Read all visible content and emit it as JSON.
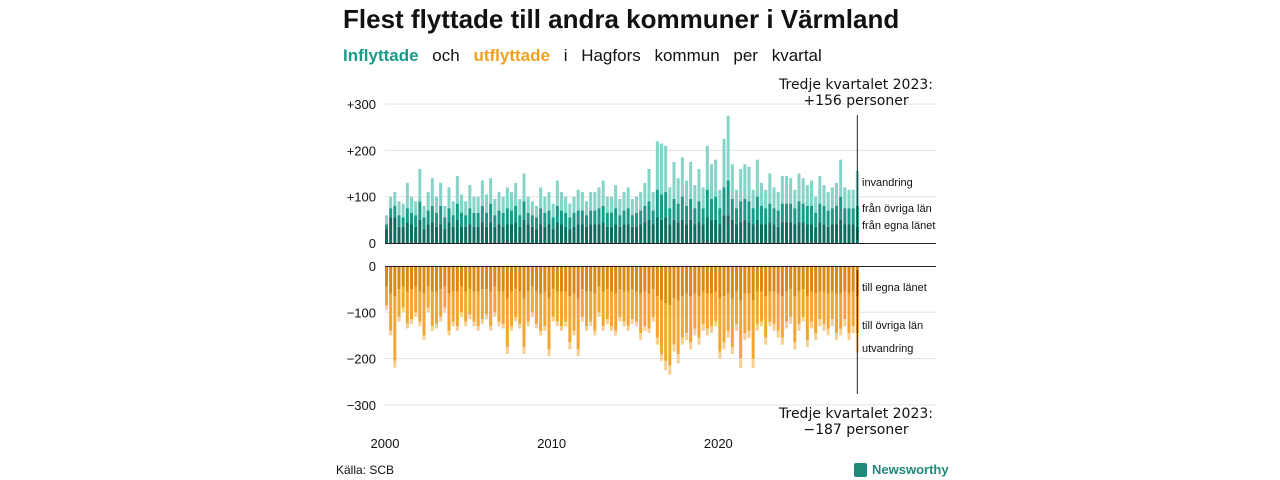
{
  "title": "Flest flyttade till andra kommuner i Värmland",
  "subtitle": {
    "in_label": "Inflyttade",
    "and": "och",
    "out_label": "utflyttade",
    "rest": [
      "i",
      "Hagfors",
      "kommun",
      "per",
      "kvartal"
    ]
  },
  "source": "Källa: SCB",
  "brand": "Newsworthy",
  "colors": {
    "in_lan": "#0d6b60",
    "in_ovr": "#1b9a88",
    "in_inv": "#86d3c8",
    "out_lan": "#db8812",
    "out_ovr": "#f2a631",
    "out_utv": "#f8cf90",
    "grid": "#e3e3e3"
  },
  "chart_data": {
    "type": "bar",
    "stacked": true,
    "x_start": 2000,
    "quarters_per_year": 4,
    "x_ticks": [
      "2000",
      "2010",
      "2020"
    ],
    "y_ticks": [
      "+300",
      "+200",
      "+100",
      "0",
      "0",
      "−100",
      "−200",
      "−300"
    ],
    "ylim_in": [
      0,
      300
    ],
    "ylim_out": [
      -300,
      0
    ],
    "grid": true,
    "annotation_top": {
      "line1": "Tredje kvartalet 2023:",
      "line2": "+156 personer"
    },
    "annotation_bottom": {
      "line1": "Tredje kvartalet 2023:",
      "line2": "−187 personer"
    },
    "series_labels": {
      "in_inv": "invandring",
      "in_ovr": "från övriga län",
      "in_lan": "från egna länet",
      "out_lan": "till egna länet",
      "out_ovr": "till övriga län",
      "out_utv": "utvandring"
    },
    "inflyttade_total": [
      60,
      100,
      110,
      90,
      85,
      130,
      100,
      90,
      160,
      80,
      110,
      140,
      100,
      130,
      80,
      120,
      90,
      145,
      105,
      90,
      125,
      100,
      100,
      135,
      105,
      140,
      95,
      110,
      100,
      120,
      110,
      130,
      95,
      150,
      100,
      90,
      80,
      120,
      100,
      110,
      85,
      135,
      110,
      100,
      85,
      100,
      115,
      110,
      90,
      110,
      110,
      120,
      135,
      100,
      100,
      125,
      95,
      110,
      120,
      95,
      100,
      110,
      130,
      160,
      110,
      220,
      215,
      210,
      120,
      175,
      140,
      185,
      135,
      175,
      125,
      160,
      120,
      210,
      170,
      180,
      115,
      225,
      275,
      170,
      115,
      160,
      170,
      165,
      115,
      180,
      130,
      115,
      150,
      120,
      110,
      145,
      145,
      140,
      115,
      150,
      140,
      125,
      135,
      100,
      145,
      125,
      110,
      120,
      130,
      180,
      120,
      115,
      115,
      156
    ],
    "ovr_lan": [
      40,
      75,
      80,
      60,
      55,
      75,
      65,
      60,
      90,
      55,
      70,
      80,
      65,
      80,
      55,
      75,
      60,
      85,
      65,
      60,
      75,
      65,
      65,
      80,
      65,
      85,
      60,
      70,
      65,
      75,
      70,
      80,
      60,
      90,
      65,
      60,
      55,
      75,
      65,
      70,
      55,
      80,
      70,
      65,
      55,
      65,
      70,
      70,
      60,
      70,
      70,
      75,
      80,
      65,
      65,
      75,
      60,
      70,
      75,
      60,
      65,
      70,
      80,
      90,
      70,
      115,
      105,
      110,
      75,
      95,
      85,
      100,
      80,
      95,
      75,
      90,
      75,
      115,
      95,
      100,
      75,
      120,
      135,
      95,
      75,
      90,
      95,
      90,
      75,
      100,
      80,
      75,
      85,
      75,
      70,
      85,
      85,
      85,
      75,
      90,
      85,
      80,
      80,
      65,
      85,
      80,
      70,
      75,
      80,
      100,
      75,
      75,
      75,
      80
    ],
    "egna_lan": [
      30,
      55,
      55,
      35,
      35,
      45,
      40,
      35,
      50,
      30,
      40,
      45,
      35,
      40,
      30,
      45,
      35,
      50,
      35,
      35,
      40,
      35,
      35,
      45,
      35,
      45,
      35,
      40,
      35,
      40,
      40,
      45,
      35,
      50,
      40,
      35,
      30,
      40,
      35,
      40,
      30,
      45,
      40,
      35,
      30,
      35,
      40,
      40,
      35,
      40,
      40,
      40,
      45,
      35,
      35,
      40,
      35,
      40,
      40,
      35,
      35,
      40,
      45,
      50,
      40,
      55,
      50,
      55,
      40,
      50,
      45,
      50,
      40,
      50,
      40,
      45,
      40,
      55,
      50,
      50,
      40,
      60,
      60,
      50,
      40,
      45,
      50,
      45,
      40,
      50,
      40,
      40,
      45,
      40,
      35,
      45,
      45,
      45,
      40,
      45,
      45,
      40,
      40,
      35,
      45,
      40,
      35,
      40,
      40,
      50,
      40,
      40,
      40,
      35
    ],
    "utflyttade_total": [
      -95,
      -150,
      -220,
      -120,
      -100,
      -135,
      -125,
      -110,
      -130,
      -160,
      -100,
      -140,
      -135,
      -120,
      -100,
      -150,
      -130,
      -140,
      -110,
      -130,
      -115,
      -130,
      -140,
      -125,
      -115,
      -140,
      -110,
      -130,
      -135,
      -190,
      -140,
      -120,
      -135,
      -190,
      -130,
      -110,
      -135,
      -150,
      -140,
      -195,
      -120,
      -130,
      -140,
      -130,
      -180,
      -150,
      -195,
      -120,
      -140,
      -130,
      -150,
      -110,
      -140,
      -125,
      -140,
      -150,
      -120,
      -130,
      -140,
      -125,
      -130,
      -160,
      -140,
      -145,
      -120,
      -170,
      -205,
      -225,
      -235,
      -185,
      -210,
      -170,
      -160,
      -180,
      -150,
      -170,
      -140,
      -150,
      -145,
      -130,
      -200,
      -180,
      -155,
      -190,
      -140,
      -220,
      -160,
      -155,
      -220,
      -140,
      -130,
      -170,
      -130,
      -140,
      -155,
      -170,
      -135,
      -125,
      -180,
      -140,
      -120,
      -175,
      -135,
      -160,
      -130,
      -140,
      -150,
      -130,
      -160,
      -150,
      -130,
      -160,
      -145,
      -187
    ],
    "ut_egna_lan": [
      -45,
      -60,
      -65,
      -50,
      -45,
      -55,
      -50,
      -45,
      -55,
      -60,
      -45,
      -55,
      -55,
      -50,
      -45,
      -60,
      -55,
      -55,
      -45,
      -55,
      -50,
      -55,
      -55,
      -50,
      -50,
      -55,
      -45,
      -55,
      -55,
      -70,
      -55,
      -50,
      -55,
      -70,
      -55,
      -45,
      -55,
      -60,
      -55,
      -70,
      -50,
      -55,
      -55,
      -55,
      -65,
      -60,
      -70,
      -50,
      -55,
      -55,
      -60,
      -45,
      -55,
      -50,
      -55,
      -60,
      -50,
      -55,
      -55,
      -50,
      -55,
      -60,
      -55,
      -60,
      -50,
      -65,
      -75,
      -80,
      -85,
      -70,
      -75,
      -65,
      -60,
      -65,
      -60,
      -65,
      -55,
      -60,
      -60,
      -55,
      -70,
      -65,
      -60,
      -70,
      -55,
      -75,
      -60,
      -60,
      -75,
      -55,
      -55,
      -65,
      -55,
      -55,
      -60,
      -65,
      -55,
      -50,
      -65,
      -55,
      -50,
      -65,
      -55,
      -60,
      -55,
      -55,
      -60,
      -55,
      -60,
      -60,
      -55,
      -60,
      -55,
      -65
    ],
    "ut_ovr_lan": [
      -40,
      -80,
      -140,
      -60,
      -45,
      -70,
      -65,
      -55,
      -65,
      -90,
      -45,
      -75,
      -70,
      -60,
      -45,
      -80,
      -65,
      -75,
      -55,
      -65,
      -55,
      -65,
      -75,
      -65,
      -55,
      -75,
      -55,
      -65,
      -70,
      -105,
      -75,
      -60,
      -70,
      -105,
      -65,
      -55,
      -70,
      -80,
      -75,
      -110,
      -60,
      -65,
      -75,
      -65,
      -100,
      -80,
      -110,
      -60,
      -75,
      -65,
      -80,
      -55,
      -75,
      -65,
      -75,
      -80,
      -60,
      -65,
      -75,
      -65,
      -65,
      -85,
      -75,
      -75,
      -60,
      -90,
      -115,
      -125,
      -130,
      -100,
      -115,
      -90,
      -85,
      -100,
      -75,
      -90,
      -70,
      -75,
      -70,
      -65,
      -115,
      -100,
      -80,
      -105,
      -70,
      -125,
      -85,
      -80,
      -125,
      -70,
      -65,
      -90,
      -65,
      -70,
      -80,
      -90,
      -65,
      -60,
      -100,
      -70,
      -60,
      -95,
      -65,
      -85,
      -60,
      -70,
      -75,
      -60,
      -85,
      -75,
      -60,
      -85,
      -75,
      -80
    ]
  }
}
